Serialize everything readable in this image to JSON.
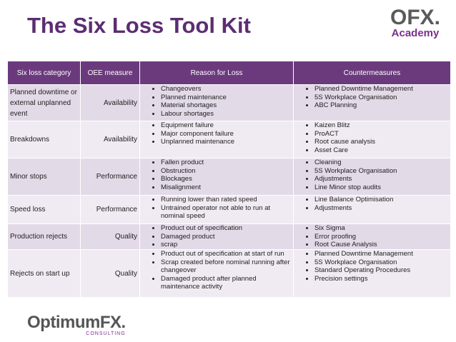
{
  "header": {
    "title": "The Six Loss Tool Kit",
    "logo_main": "OFX.",
    "logo_sub": "Academy"
  },
  "table": {
    "headers": [
      "Six loss category",
      "OEE measure",
      "Reason for Loss",
      "Countermeasures"
    ],
    "rows": [
      {
        "category": "Planned downtime or external unplanned event",
        "oee": "Availability",
        "reasons": [
          "Changeovers",
          "Planned maintenance",
          "Material shortages",
          "Labour shortages"
        ],
        "countermeasures": [
          "Planned Downtime Management",
          "5S Workplace Organisation",
          "ABC Planning"
        ]
      },
      {
        "category": "Breakdowns",
        "oee": "Availability",
        "reasons": [
          "Equipment failure",
          "Major component failure",
          "Unplanned maintenance"
        ],
        "countermeasures": [
          "Kaizen Blitz",
          "ProACT",
          "Root cause analysis",
          "Asset Care"
        ]
      },
      {
        "category": "Minor stops",
        "oee": "Performance",
        "reasons": [
          "Fallen product",
          "Obstruction",
          "Blockages",
          "Misalignment"
        ],
        "countermeasures": [
          "Cleaning",
          "5S Workplace Organisation",
          "Adjustments",
          "Line Minor stop audits"
        ]
      },
      {
        "category": "Speed loss",
        "oee": "Performance",
        "reasons": [
          "Running lower than rated speed",
          "Untrained operator not able to run at nominal speed"
        ],
        "countermeasures": [
          "Line Balance Optimisation",
          "Adjustments"
        ]
      },
      {
        "category": "Production rejects",
        "oee": "Quality",
        "reasons": [
          "Product out of specification",
          "Damaged product",
          "scrap"
        ],
        "countermeasures": [
          "Six Sigma",
          "Error proofing",
          "Root Cause Analysis"
        ]
      },
      {
        "category": "Rejects on start up",
        "oee": "Quality",
        "reasons": [
          "Product out of specification at start of run",
          "Scrap created before nominal running after changeover",
          "Damaged product after planned maintenance activity"
        ],
        "countermeasures": [
          "Planned Downtime Management",
          "5S Workplace Organisation",
          "Standard Operating Procedures",
          "Precision settings"
        ]
      }
    ]
  },
  "footer": {
    "logo_main": "OptimumFX.",
    "logo_sub": "CONSULTING"
  }
}
